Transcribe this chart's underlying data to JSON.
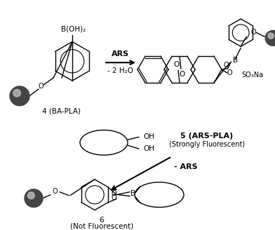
{
  "bg_color": "#ffffff",
  "fig_width": 3.92,
  "fig_height": 3.28,
  "dpi": 100,
  "arrow1_label_top": "ARS",
  "arrow1_label_bot": "- 2 H₂O",
  "arrow2_label": "- ARS",
  "label4": "4 (BA-PLA)",
  "label5": "5 (ARS-PLA)",
  "label5b": "(Strongly Fluorescent)",
  "label6": "6",
  "label6b": "(Not Fluorescent)"
}
